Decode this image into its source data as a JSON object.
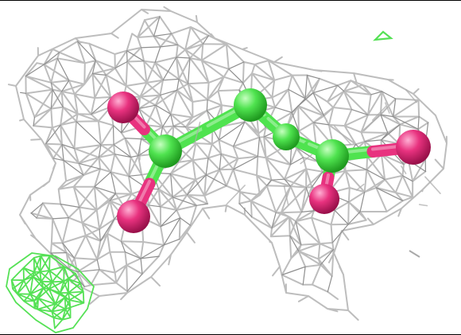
{
  "colors": {
    "background": "#ffffff",
    "mesh_main": "#bdbdbd",
    "mesh_shadow": "#8e8e8e",
    "mesh_diff": "#55e155",
    "carbon": "#4fe34f",
    "carbon_dark": "#25b325",
    "oxygen": "#e8327f",
    "oxygen_dark": "#b51255"
  },
  "scene": {
    "subject": "electron-density-mesh-ligand-render",
    "atoms": [
      {
        "element": "carbon"
      },
      {
        "element": "carbon"
      },
      {
        "element": "carbon"
      },
      {
        "element": "carbon"
      },
      {
        "element": "oxygen"
      },
      {
        "element": "oxygen"
      },
      {
        "element": "oxygen"
      },
      {
        "element": "oxygen"
      }
    ]
  }
}
